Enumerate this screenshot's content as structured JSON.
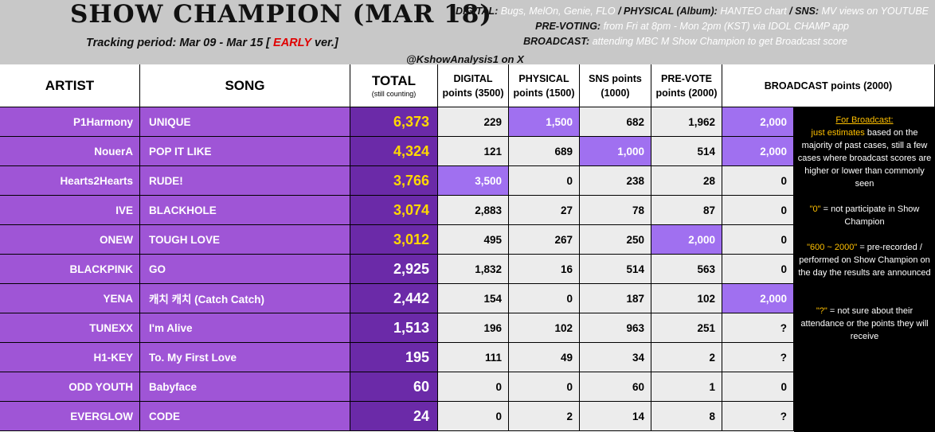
{
  "header": {
    "title": "SHOW CHAMPION (MAR 18)",
    "period_prefix": "Tracking period: Mar 09 - Mar 15 [",
    "period_early": "EARLY",
    "period_suffix": "ver.]",
    "handle": "@KshowAnalysis1 on X",
    "digital_label": "DIGITAL:",
    "digital_value": "Bugs, MelOn, Genie, FLO",
    "physical_label": "/ PHYSICAL (Album):",
    "physical_value": "HANTEO chart",
    "sns_label": "/ SNS:",
    "sns_value": "MV views on YOUTUBE",
    "prevote_label": "PRE-VOTING:",
    "prevote_value": "from Fri at 8pm - Mon 2pm (KST) via IDOL CHAMP app",
    "broadcast_label": "BROADCAST:",
    "broadcast_value": "attending MBC M Show Champion to get Broadcast score"
  },
  "columns": {
    "artist": "ARTIST",
    "song": "SONG",
    "total": "TOTAL",
    "total_sub": "(still counting)",
    "digital": "DIGITAL points (3500)",
    "physical": "PHYSICAL points (1500)",
    "sns": "SNS points (1000)",
    "prevote": "PRE-VOTE points (2000)",
    "broadcast": "BROADCAST points (2000)"
  },
  "rows": [
    {
      "artist": "P1Harmony",
      "song": "UNIQUE",
      "total": "6,373",
      "digital": "229",
      "physical": "1,500",
      "sns": "682",
      "prevote": "1,962",
      "broadcast": "2,000"
    },
    {
      "artist": "NouerA",
      "song": "POP IT LIKE",
      "total": "4,324",
      "digital": "121",
      "physical": "689",
      "sns": "1,000",
      "prevote": "514",
      "broadcast": "2,000"
    },
    {
      "artist": "Hearts2Hearts",
      "song": "RUDE!",
      "total": "3,766",
      "digital": "3,500",
      "physical": "0",
      "sns": "238",
      "prevote": "28",
      "broadcast": "0"
    },
    {
      "artist": "IVE",
      "song": "BLACKHOLE",
      "total": "3,074",
      "digital": "2,883",
      "physical": "27",
      "sns": "78",
      "prevote": "87",
      "broadcast": "0"
    },
    {
      "artist": "ONEW",
      "song": "TOUGH LOVE",
      "total": "3,012",
      "digital": "495",
      "physical": "267",
      "sns": "250",
      "prevote": "2,000",
      "broadcast": "0"
    },
    {
      "artist": "BLACKPINK",
      "song": "GO",
      "total": "2,925",
      "digital": "1,832",
      "physical": "16",
      "sns": "514",
      "prevote": "563",
      "broadcast": "0"
    },
    {
      "artist": "YENA",
      "song": "캐치 캐치 (Catch Catch)",
      "total": "2,442",
      "digital": "154",
      "physical": "0",
      "sns": "187",
      "prevote": "102",
      "broadcast": "2,000"
    },
    {
      "artist": "TUNEXX",
      "song": "I'm Alive",
      "total": "1,513",
      "digital": "196",
      "physical": "102",
      "sns": "963",
      "prevote": "251",
      "broadcast": "?"
    },
    {
      "artist": "H1-KEY",
      "song": "To. My First Love",
      "total": "195",
      "digital": "111",
      "physical": "49",
      "sns": "34",
      "prevote": "2",
      "broadcast": "?"
    },
    {
      "artist": "ODD YOUTH",
      "song": "Babyface",
      "total": "60",
      "digital": "0",
      "physical": "0",
      "sns": "60",
      "prevote": "1",
      "broadcast": "0"
    },
    {
      "artist": "EVERGLOW",
      "song": "CODE",
      "total": "24",
      "digital": "0",
      "physical": "2",
      "sns": "14",
      "prevote": "8",
      "broadcast": "?"
    }
  ],
  "highlights": {
    "top5_total_color": "#ffd800",
    "max_cell_color": "#a070f0"
  },
  "note": {
    "head": "For Broadcast:",
    "line1_a": "just estimates",
    "line1_b": " based on the majority of past cases, still a few cases where broadcast scores are higher or lower than commonly seen",
    "line2_a": "\"0\"",
    "line2_b": " = not participate in Show Champion",
    "line3_a": "\"600 ~ 2000\"",
    "line3_b": " = pre-recorded / performed on Show Champion on the day the results are announced",
    "line4_a": "\"?\"",
    "line4_b": " = not sure about their attendance or the points they will receive"
  }
}
